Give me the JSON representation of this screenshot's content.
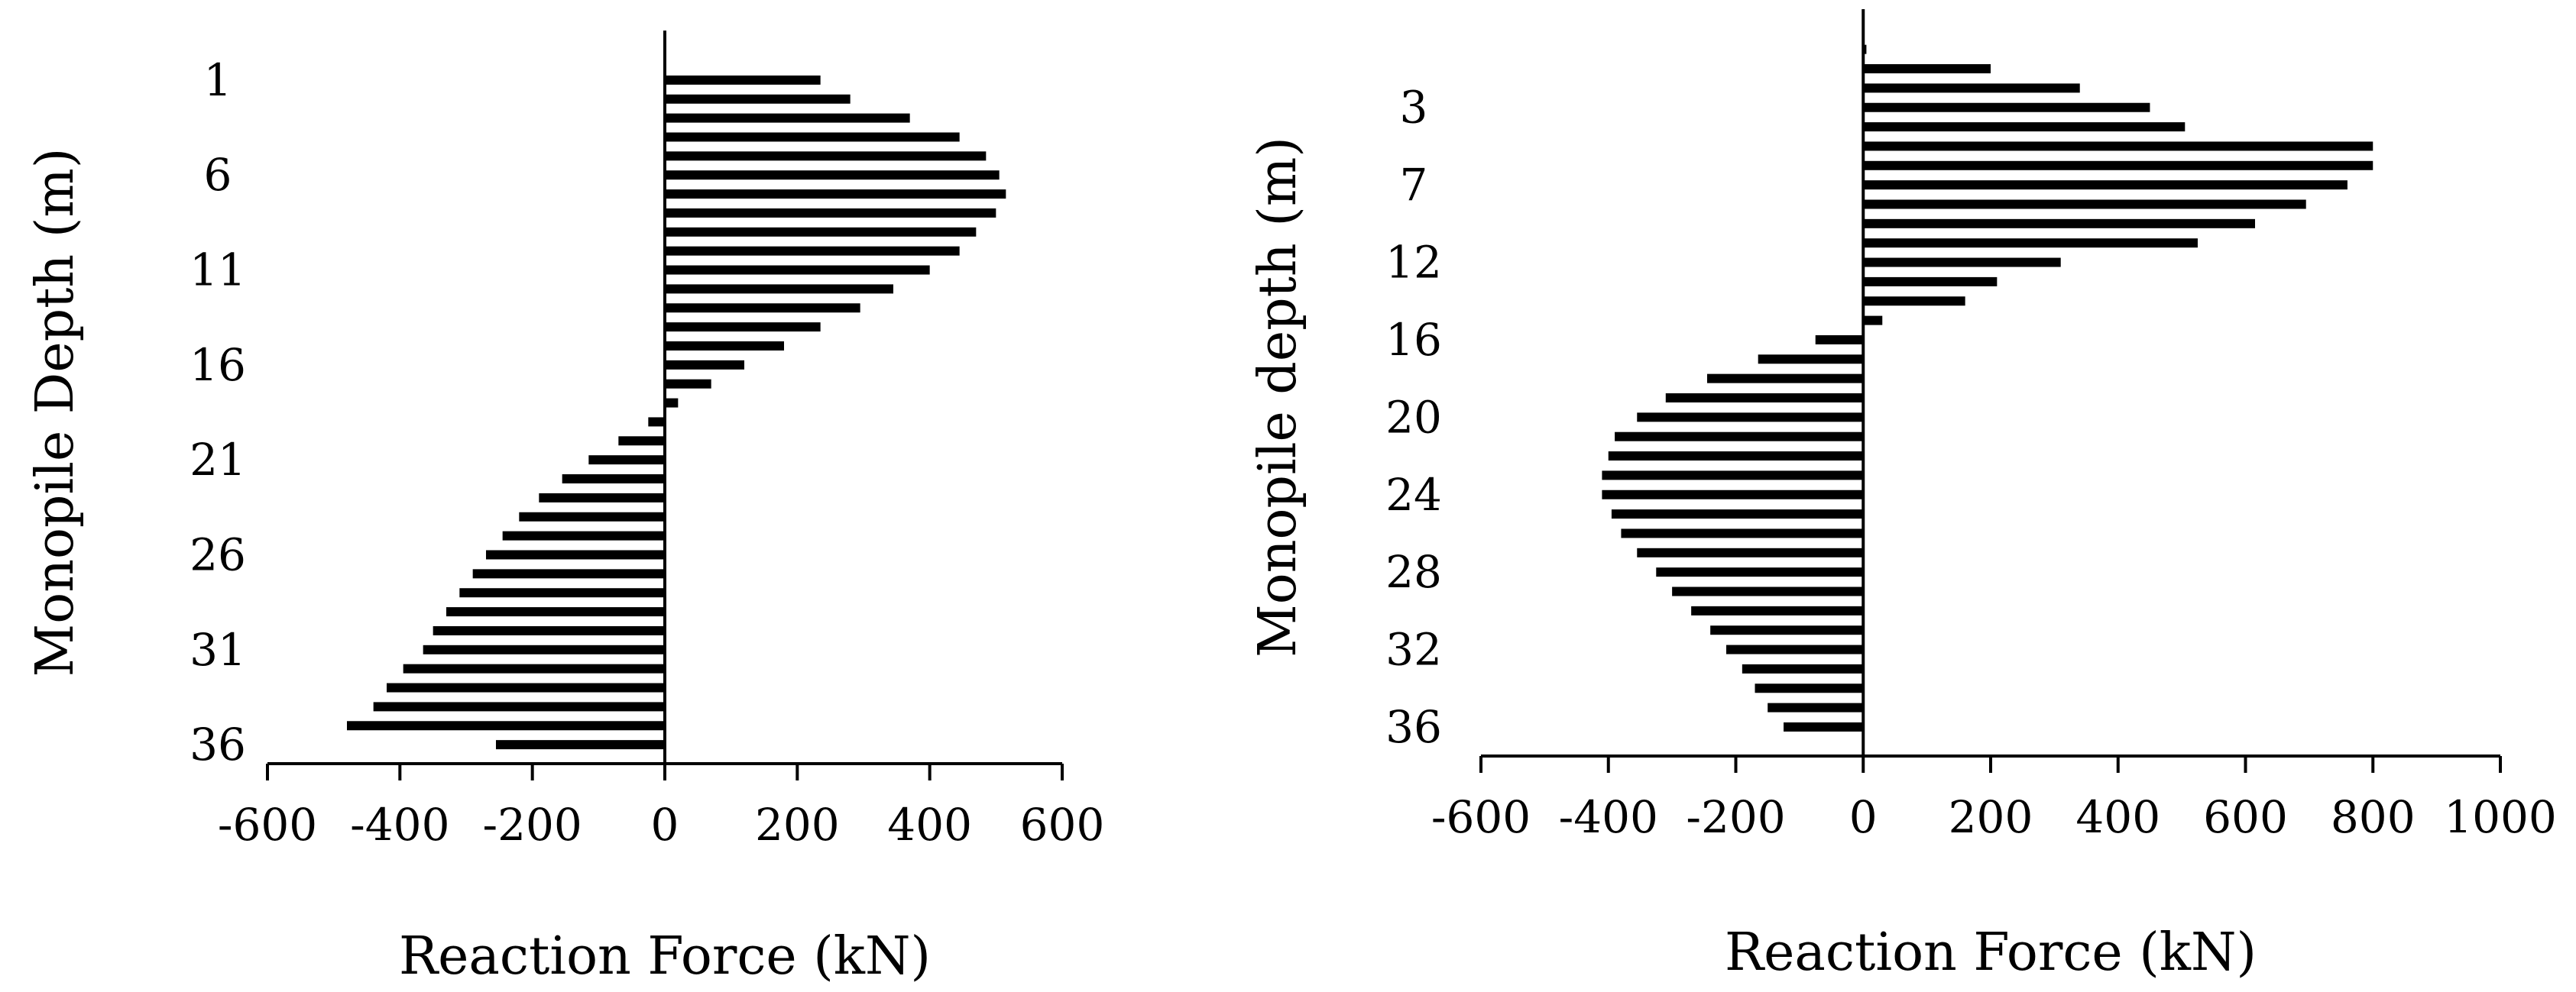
{
  "chart_data": [
    {
      "type": "bar",
      "orientation": "horizontal",
      "xlabel": "Reaction Force (kN)",
      "ylabel": "Monopile Depth (m)",
      "xlim": [
        -600,
        600
      ],
      "x_ticks": [
        -600,
        -400,
        -200,
        0,
        200,
        400,
        600
      ],
      "ylim": [
        0,
        37
      ],
      "y_ticks": [
        1,
        6,
        11,
        16,
        21,
        26,
        31,
        36
      ],
      "grid": false,
      "depths": [
        1,
        2,
        3,
        4,
        5,
        6,
        7,
        8,
        9,
        10,
        11,
        12,
        13,
        14,
        15,
        16,
        17,
        18,
        19,
        20,
        21,
        22,
        23,
        24,
        25,
        26,
        27,
        28,
        29,
        30,
        31,
        32,
        33,
        34,
        35,
        36
      ],
      "values": [
        235,
        280,
        370,
        445,
        485,
        505,
        515,
        500,
        470,
        445,
        400,
        345,
        295,
        235,
        180,
        120,
        70,
        20,
        -25,
        -70,
        -115,
        -155,
        -190,
        -220,
        -245,
        -270,
        -290,
        -310,
        -330,
        -350,
        -365,
        -395,
        -420,
        -440,
        -480,
        -255
      ]
    },
    {
      "type": "bar",
      "orientation": "horizontal",
      "xlabel": "Reaction Force (kN)",
      "ylabel": "Monopile depth (m)",
      "xlim": [
        -600,
        1000
      ],
      "x_ticks": [
        -600,
        -400,
        -200,
        0,
        200,
        400,
        600,
        800,
        1000
      ],
      "ylim": [
        -0.5,
        36.5
      ],
      "y_ticks": [
        3,
        7,
        12,
        16,
        20,
        24,
        28,
        32,
        36
      ],
      "y_tick_positions": [
        3,
        7,
        11,
        15,
        19,
        23,
        27,
        31,
        35
      ],
      "grid": false,
      "depths": [
        0,
        1,
        2,
        3,
        4,
        5,
        6,
        7,
        8,
        9,
        10,
        11,
        12,
        13,
        14,
        15,
        16,
        17,
        18,
        19,
        20,
        21,
        22,
        23,
        24,
        25,
        26,
        27,
        28,
        29,
        30,
        31,
        32,
        33,
        34,
        35
      ],
      "values": [
        5,
        200,
        340,
        450,
        505,
        800,
        800,
        760,
        695,
        615,
        525,
        310,
        210,
        160,
        30,
        -75,
        -165,
        -245,
        -310,
        -355,
        -390,
        -400,
        -410,
        -410,
        -395,
        -380,
        -355,
        -325,
        -300,
        -270,
        -240,
        -215,
        -190,
        -170,
        -150,
        -125
      ]
    }
  ]
}
